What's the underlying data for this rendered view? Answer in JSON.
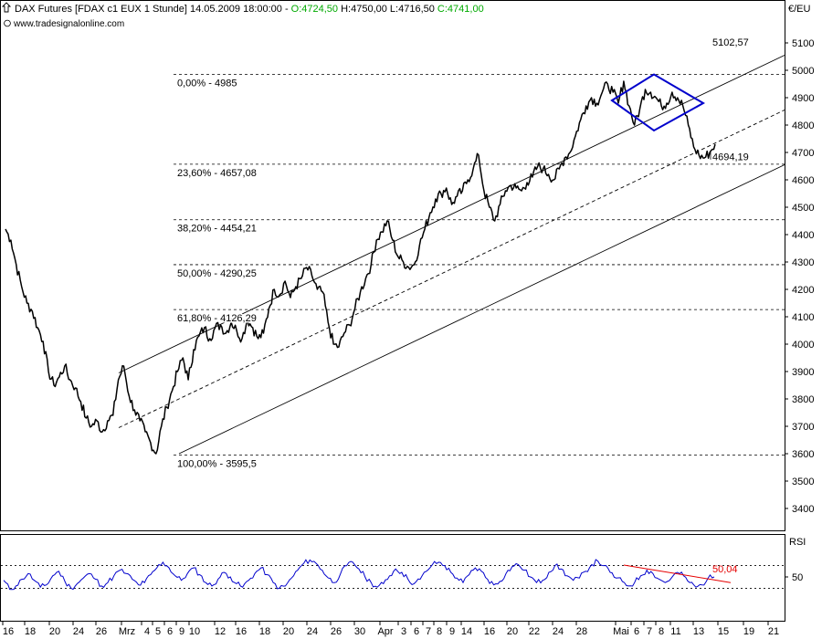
{
  "header": {
    "line1_prefix": "DAX Futures [FDAX c1 EUX  1 Stunde] 14.05.2009 18:00:00 - ",
    "open": "O:4724,50",
    "hl": " H:4750,00 L:4716,50 ",
    "close": "C:4741,00",
    "line2": "www.tradesignalonline.com"
  },
  "colors": {
    "open_close": "#00aa00",
    "rsi_line": "#0000cc",
    "diamond": "#0000cc",
    "divergence": "#e60000",
    "price": "#000000"
  },
  "chart_data": [
    {
      "type": "line",
      "unit_label": "€/EU",
      "ylim": [
        3300,
        5200
      ],
      "y_ticks": [
        3400,
        3500,
        3600,
        3700,
        3800,
        3900,
        4000,
        4100,
        4200,
        4300,
        4400,
        4500,
        4600,
        4700,
        4800,
        4900,
        5000,
        5100
      ],
      "y_tick_labels": [
        "3400",
        "3500",
        "3600",
        "3700",
        "3800",
        "3900",
        "4000",
        "4100",
        "4200",
        "4300",
        "4400",
        "4500",
        "4600",
        "4700",
        "4800",
        "4900",
        "5000",
        "5100"
      ],
      "x_tick_labels": [
        "16",
        "18",
        "20",
        "24",
        "26",
        "Mrz",
        "4",
        "5",
        "6",
        "9",
        "10",
        "12",
        "16",
        "18",
        "20",
        "24",
        "26",
        "30",
        "Apr",
        "3",
        "6",
        "7",
        "8",
        "9",
        "14",
        "16",
        "20",
        "22",
        "24",
        "28",
        "Mai",
        "6",
        "7",
        "8",
        "11",
        "13",
        "15",
        "19",
        "21"
      ],
      "fib_levels": [
        {
          "label": "0,00% - 4985",
          "value": 4985
        },
        {
          "label": "23,60% - 4657,08",
          "value": 4657.08
        },
        {
          "label": "38,20% - 4454,21",
          "value": 4454.21
        },
        {
          "label": "50,00% - 4290,25",
          "value": 4290.25
        },
        {
          "label": "61,80% - 4126,29",
          "value": 4126.29
        },
        {
          "label": "100,00% - 3595,5",
          "value": 3595.5
        }
      ],
      "annotations": [
        {
          "label": "5102,57",
          "value": 5102.57
        },
        {
          "label": "4694,19",
          "value": 4694.19
        }
      ],
      "series": [
        {
          "values": [
            4420,
            4380,
            4290,
            4210,
            4150,
            4120,
            4060,
            4010,
            3900,
            3850,
            3880,
            3920,
            3870,
            3840,
            3790,
            3730,
            3700,
            3720,
            3680,
            3720,
            3740,
            3870,
            3920,
            3810,
            3760,
            3720,
            3680,
            3640,
            3600,
            3700,
            3770,
            3830,
            3900,
            3950,
            3870,
            3980,
            4030,
            4060,
            4020,
            4060,
            4070,
            4040,
            4080,
            4050,
            4020,
            4090,
            4060,
            4020,
            4040,
            4130,
            4200,
            4180,
            4230,
            4170,
            4210,
            4240,
            4280,
            4250,
            4200,
            4190,
            4080,
            4000,
            3990,
            4040,
            4070,
            4130,
            4190,
            4240,
            4290,
            4380,
            4410,
            4450,
            4380,
            4320,
            4300,
            4280,
            4290,
            4360,
            4420,
            4480,
            4530,
            4550,
            4570,
            4510,
            4540,
            4560,
            4600,
            4640,
            4690,
            4560,
            4500,
            4450,
            4510,
            4560,
            4580,
            4570,
            4560,
            4590,
            4610,
            4650,
            4640,
            4620,
            4600,
            4640,
            4680,
            4700,
            4760,
            4820,
            4870,
            4900,
            4880,
            4920,
            4950,
            4920,
            4880,
            4960,
            4870,
            4800,
            4860,
            4930,
            4920,
            4900,
            4870,
            4880,
            4920,
            4900,
            4870,
            4800,
            4720,
            4690,
            4680,
            4700,
            4730
          ]
        }
      ]
    },
    {
      "type": "line",
      "title": "RSI",
      "ylim": [
        0,
        100
      ],
      "y_ticks": [
        50
      ],
      "y_tick_labels": [
        "50"
      ],
      "bands": [
        70,
        30
      ],
      "divergence_label": "50,04",
      "series": [
        {
          "values": [
            44,
            28,
            34,
            46,
            56,
            44,
            32,
            36,
            52,
            60,
            42,
            30,
            38,
            48,
            56,
            46,
            34,
            40,
            52,
            62,
            56,
            46,
            36,
            40,
            54,
            66,
            76,
            66,
            52,
            44,
            56,
            66,
            54,
            40,
            34,
            46,
            58,
            50,
            38,
            32,
            44,
            56,
            66,
            54,
            40,
            30,
            34,
            48,
            62,
            74,
            80,
            74,
            62,
            48,
            40,
            56,
            70,
            76,
            64,
            50,
            40,
            32,
            38,
            52,
            64,
            58,
            46,
            38,
            46,
            60,
            72,
            76,
            70,
            58,
            48,
            40,
            54,
            66,
            60,
            46,
            36,
            42,
            56,
            68,
            72,
            62,
            50,
            40,
            44,
            58,
            70,
            64,
            52,
            44,
            48,
            60,
            72,
            78,
            70,
            58,
            48,
            42,
            34,
            40,
            52,
            62,
            56,
            46,
            40,
            48,
            58,
            52,
            40,
            32,
            36,
            48,
            50
          ]
        }
      ]
    }
  ]
}
